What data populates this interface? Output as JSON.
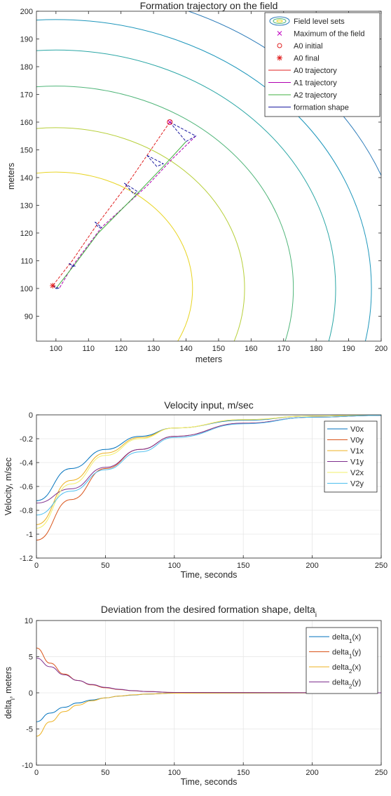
{
  "chart_data": [
    {
      "type": "line",
      "title": "Formation trajectory on the field",
      "xlabel": "meters",
      "ylabel": "meters",
      "xlim": [
        94,
        200
      ],
      "ylim": [
        81,
        200
      ],
      "xticks": [
        100,
        110,
        120,
        130,
        140,
        150,
        160,
        170,
        180,
        190,
        200
      ],
      "yticks": [
        90,
        100,
        110,
        120,
        130,
        140,
        150,
        160,
        170,
        180,
        190,
        200
      ],
      "grid": false,
      "legend_position": "top-right",
      "legend": [
        {
          "label": "Field level sets",
          "marker": "contour",
          "color": "#2b7bb9"
        },
        {
          "label": "Maximum of the field",
          "marker": "x",
          "color": "#c000c0"
        },
        {
          "label": "A0 initial",
          "marker": "o",
          "color": "#e02020"
        },
        {
          "label": "A0 final",
          "marker": "*",
          "color": "#e02020"
        },
        {
          "label": "A0 trajectory",
          "marker": "line",
          "color": "#e02020"
        },
        {
          "label": "A1 trajectory",
          "marker": "line",
          "color": "#b000b0"
        },
        {
          "label": "A2 trajectory",
          "marker": "line",
          "color": "#40b040"
        },
        {
          "label": "formation shape",
          "marker": "line",
          "color": "#1a1aa0"
        }
      ],
      "field_maximum": {
        "x": 135,
        "y": 160,
        "color": "#c000c0"
      },
      "a0_initial": {
        "x": 135,
        "y": 160,
        "color": "#e02020"
      },
      "a0_final": {
        "x": 99,
        "y": 101,
        "color": "#e02020"
      },
      "contour_center": {
        "x": 100,
        "y": 100
      },
      "contours": [
        {
          "r": 42,
          "color": "#e8d422"
        },
        {
          "r": 58,
          "color": "#b7cf3a"
        },
        {
          "r": 73,
          "color": "#4fb579"
        },
        {
          "r": 86,
          "color": "#2aa6a5"
        },
        {
          "r": 97,
          "color": "#1d96bb"
        },
        {
          "r": 108,
          "color": "#2b7bb9"
        }
      ],
      "series": [
        {
          "name": "A0 trajectory",
          "color": "#e02020",
          "dashed": true,
          "x": [
            135,
            128,
            121,
            112,
            105,
            99
          ],
          "y": [
            160,
            148,
            136,
            122,
            110,
            101
          ]
        },
        {
          "name": "A1 trajectory",
          "color": "#b000b0",
          "dashed": true,
          "x": [
            143,
            136,
            128,
            114,
            105,
            101
          ],
          "y": [
            155,
            147,
            137,
            122,
            108,
            100
          ]
        },
        {
          "name": "A2 trajectory",
          "color": "#40b040",
          "dashed": false,
          "x": [
            140,
            133,
            124,
            113,
            106,
            100
          ],
          "y": [
            153,
            144,
            133,
            120,
            109,
            100
          ]
        }
      ],
      "formation_shapes": [
        {
          "x": [
            135,
            143,
            140,
            135
          ],
          "y": [
            160,
            155,
            153,
            160
          ]
        },
        {
          "x": [
            128,
            133,
            131,
            128
          ],
          "y": [
            148,
            145,
            144,
            148
          ]
        },
        {
          "x": [
            121,
            125,
            124,
            121
          ],
          "y": [
            138,
            135,
            134,
            138
          ]
        },
        {
          "x": [
            112,
            114,
            113,
            112
          ],
          "y": [
            124,
            122,
            122,
            124
          ]
        },
        {
          "x": [
            104,
            106,
            105,
            104
          ],
          "y": [
            109,
            108,
            108,
            109
          ]
        },
        {
          "x": [
            99,
            101,
            100,
            99
          ],
          "y": [
            101,
            100,
            100,
            101
          ]
        }
      ]
    },
    {
      "type": "line",
      "title": "Velocity input, m/sec",
      "xlabel": "Time, seconds",
      "ylabel": "Velocity, m/sec",
      "xlim": [
        0,
        250
      ],
      "ylim": [
        -1.2,
        0
      ],
      "xticks": [
        0,
        50,
        100,
        150,
        200,
        250
      ],
      "yticks": [
        -1.2,
        -1,
        -0.8,
        -0.6,
        -0.4,
        -0.2,
        0
      ],
      "ytick_labels": [
        "-1.2",
        "-1",
        "-0.8",
        "-0.6",
        "-0.4",
        "-0.2",
        "0"
      ],
      "grid": true,
      "legend_position": "right",
      "series": [
        {
          "name": "V0x",
          "color": "#0072bd",
          "x": [
            0,
            25,
            50,
            75,
            100,
            150,
            200,
            250
          ],
          "y": [
            -0.72,
            -0.45,
            -0.29,
            -0.18,
            -0.11,
            -0.045,
            -0.01,
            -0.002
          ]
        },
        {
          "name": "V0y",
          "color": "#d95319",
          "x": [
            0,
            25,
            50,
            75,
            100,
            150,
            200,
            250
          ],
          "y": [
            -1.05,
            -0.71,
            -0.45,
            -0.29,
            -0.18,
            -0.07,
            -0.02,
            -0.005
          ]
        },
        {
          "name": "V1x",
          "color": "#edb120",
          "x": [
            0,
            25,
            50,
            75,
            100,
            150,
            200,
            250
          ],
          "y": [
            -0.92,
            -0.55,
            -0.32,
            -0.19,
            -0.11,
            -0.04,
            -0.01,
            -0.002
          ]
        },
        {
          "name": "V1y",
          "color": "#7e2f8e",
          "x": [
            0,
            25,
            50,
            75,
            100,
            150,
            200,
            250
          ],
          "y": [
            -0.74,
            -0.62,
            -0.44,
            -0.29,
            -0.18,
            -0.07,
            -0.02,
            -0.005
          ]
        },
        {
          "name": "V2x",
          "color": "#f2ef6a",
          "x": [
            0,
            25,
            50,
            75,
            100,
            150,
            200,
            250
          ],
          "y": [
            -0.95,
            -0.58,
            -0.34,
            -0.2,
            -0.11,
            -0.04,
            -0.01,
            -0.002
          ]
        },
        {
          "name": "V2y",
          "color": "#4dbeee",
          "x": [
            0,
            25,
            50,
            75,
            100,
            150,
            200,
            250
          ],
          "y": [
            -0.84,
            -0.64,
            -0.46,
            -0.31,
            -0.19,
            -0.075,
            -0.02,
            -0.005
          ]
        }
      ]
    },
    {
      "type": "line",
      "title": "Deviation from the desired formation shape, delta",
      "title_subscript": "i",
      "xlabel": "Time, seconds",
      "ylabel": "delta",
      "ylabel_subscript": "i",
      "ylabel_suffix": ", meters",
      "xlim": [
        0,
        250
      ],
      "ylim": [
        -10,
        10
      ],
      "xticks": [
        0,
        50,
        100,
        150,
        200,
        250
      ],
      "yticks": [
        -10,
        -5,
        0,
        5,
        10
      ],
      "grid": true,
      "legend_position": "right",
      "series": [
        {
          "name": "delta",
          "sub": "1",
          "suffix": "(x)",
          "color": "#0072bd",
          "x": [
            0,
            10,
            20,
            30,
            40,
            50,
            60,
            70,
            80,
            100,
            250
          ],
          "y": [
            -4,
            -2.8,
            -2.0,
            -1.4,
            -1.0,
            -0.7,
            -0.45,
            -0.3,
            -0.18,
            -0.05,
            0
          ]
        },
        {
          "name": "delta",
          "sub": "1",
          "suffix": "(y)",
          "color": "#d95319",
          "x": [
            0,
            10,
            20,
            30,
            40,
            50,
            60,
            70,
            80,
            100,
            250
          ],
          "y": [
            6.2,
            4.1,
            2.6,
            1.7,
            1.1,
            0.7,
            0.45,
            0.28,
            0.17,
            0.05,
            0
          ]
        },
        {
          "name": "delta",
          "sub": "2",
          "suffix": "(x)",
          "color": "#edb120",
          "x": [
            0,
            10,
            20,
            30,
            40,
            50,
            60,
            70,
            80,
            100,
            250
          ],
          "y": [
            -6,
            -4.0,
            -2.6,
            -1.7,
            -1.1,
            -0.7,
            -0.45,
            -0.28,
            -0.17,
            -0.05,
            0
          ]
        },
        {
          "name": "delta",
          "sub": "2",
          "suffix": "(y)",
          "color": "#7e2f8e",
          "x": [
            0,
            10,
            20,
            30,
            40,
            50,
            60,
            70,
            80,
            100,
            250
          ],
          "y": [
            4.8,
            3.6,
            2.5,
            1.7,
            1.15,
            0.75,
            0.48,
            0.3,
            0.18,
            0.05,
            0
          ]
        }
      ]
    }
  ]
}
